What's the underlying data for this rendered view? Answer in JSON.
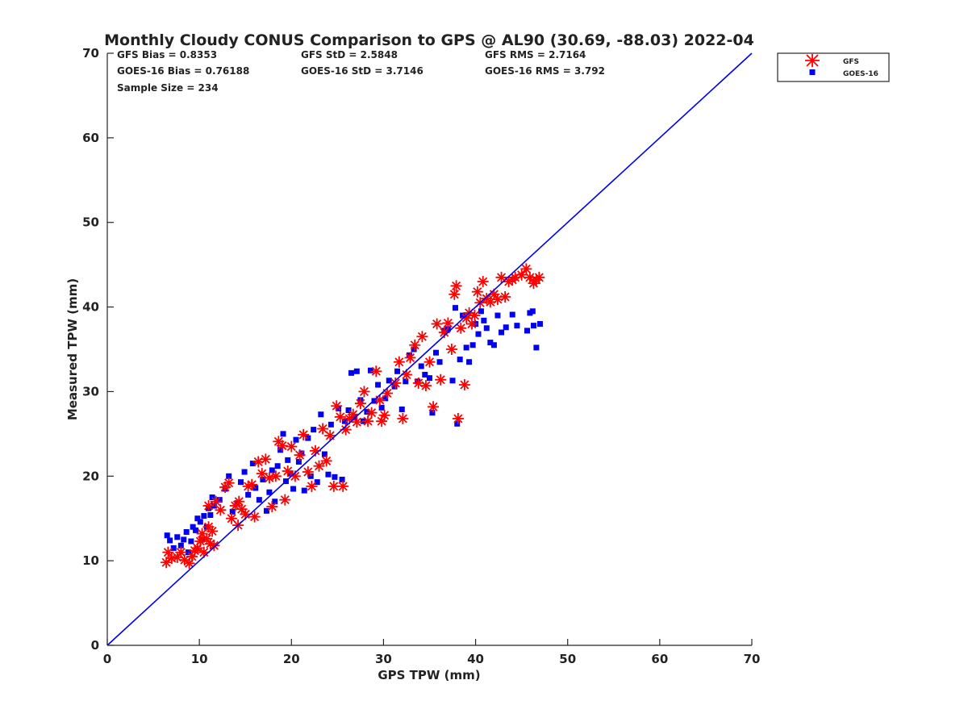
{
  "chart_data": {
    "type": "scatter",
    "title": "Monthly Cloudy CONUS Comparison to GPS @ AL90 (30.69, -88.03) 2022-04",
    "xlabel": "GPS TPW (mm)",
    "ylabel": "Measured TPW (mm)",
    "xlim": [
      0,
      70
    ],
    "ylim": [
      0,
      70
    ],
    "xticks": [
      0,
      10,
      20,
      30,
      40,
      50,
      60,
      70
    ],
    "yticks": [
      0,
      10,
      20,
      30,
      40,
      50,
      60,
      70
    ],
    "grid": false,
    "legend_position": "top-right (outside)",
    "reference_line": {
      "name": "1:1 line",
      "x": [
        0,
        70
      ],
      "y": [
        0,
        70
      ],
      "color": "#0000ee"
    },
    "stats": [
      [
        "GFS Bias = 0.8353",
        "GFS StD = 2.5848",
        "GFS RMS = 2.7164"
      ],
      [
        "GOES-16 Bias = 0.76188",
        "GOES-16 StD = 3.7146",
        "GOES-16 RMS = 3.792"
      ],
      [
        "Sample Size = 234"
      ]
    ],
    "series": [
      {
        "name": "GFS",
        "marker": "asterisk",
        "color": "#ff0000",
        "points": [
          [
            6.4,
            9.8
          ],
          [
            6.6,
            11.0
          ],
          [
            7.0,
            10.3
          ],
          [
            7.6,
            10.4
          ],
          [
            8.0,
            11.0
          ],
          [
            8.4,
            10.1
          ],
          [
            8.9,
            9.7
          ],
          [
            9.2,
            10.5
          ],
          [
            9.5,
            11.2
          ],
          [
            9.8,
            11.5
          ],
          [
            10.1,
            12.3
          ],
          [
            10.3,
            13.2
          ],
          [
            10.5,
            11.0
          ],
          [
            10.8,
            12.6
          ],
          [
            11.0,
            14.0
          ],
          [
            11.2,
            12.0
          ],
          [
            11.4,
            13.5
          ],
          [
            11.6,
            11.8
          ],
          [
            11.0,
            16.5
          ],
          [
            11.8,
            17.0
          ],
          [
            12.3,
            16.0
          ],
          [
            12.8,
            18.7
          ],
          [
            13.2,
            19.2
          ],
          [
            13.5,
            15.0
          ],
          [
            13.9,
            16.5
          ],
          [
            14.3,
            17.0
          ],
          [
            14.6,
            16.1
          ],
          [
            14.2,
            14.2
          ],
          [
            15.0,
            15.5
          ],
          [
            15.3,
            18.8
          ],
          [
            15.7,
            19.0
          ],
          [
            16.0,
            15.2
          ],
          [
            16.4,
            21.7
          ],
          [
            16.8,
            20.3
          ],
          [
            17.2,
            22.0
          ],
          [
            17.6,
            19.8
          ],
          [
            17.9,
            16.4
          ],
          [
            18.3,
            20.0
          ],
          [
            18.6,
            24.1
          ],
          [
            19.0,
            23.6
          ],
          [
            19.3,
            17.2
          ],
          [
            19.6,
            20.6
          ],
          [
            20.0,
            23.5
          ],
          [
            20.4,
            20.0
          ],
          [
            20.9,
            22.5
          ],
          [
            21.3,
            24.9
          ],
          [
            21.8,
            20.5
          ],
          [
            22.2,
            18.8
          ],
          [
            22.6,
            23.0
          ],
          [
            23.0,
            21.2
          ],
          [
            23.4,
            25.6
          ],
          [
            23.8,
            21.8
          ],
          [
            24.2,
            24.8
          ],
          [
            24.6,
            18.8
          ],
          [
            24.9,
            28.3
          ],
          [
            25.3,
            27.0
          ],
          [
            25.6,
            18.8
          ],
          [
            25.9,
            25.5
          ],
          [
            26.3,
            26.8
          ],
          [
            26.7,
            27.3
          ],
          [
            27.1,
            26.4
          ],
          [
            27.5,
            28.6
          ],
          [
            27.9,
            30.0
          ],
          [
            28.3,
            26.5
          ],
          [
            28.7,
            27.5
          ],
          [
            29.2,
            32.4
          ],
          [
            29.6,
            29.0
          ],
          [
            29.8,
            26.5
          ],
          [
            30.1,
            27.2
          ],
          [
            30.4,
            29.8
          ],
          [
            31.3,
            31.0
          ],
          [
            31.7,
            33.5
          ],
          [
            32.1,
            26.8
          ],
          [
            32.5,
            32.0
          ],
          [
            32.9,
            34.0
          ],
          [
            33.4,
            35.5
          ],
          [
            33.8,
            31.0
          ],
          [
            34.2,
            36.5
          ],
          [
            34.6,
            30.7
          ],
          [
            35.0,
            33.5
          ],
          [
            35.4,
            28.2
          ],
          [
            35.8,
            38.0
          ],
          [
            36.2,
            31.4
          ],
          [
            36.6,
            37.0
          ],
          [
            37.0,
            38.1
          ],
          [
            37.4,
            35.0
          ],
          [
            37.7,
            41.5
          ],
          [
            37.9,
            42.5
          ],
          [
            38.1,
            26.8
          ],
          [
            38.4,
            37.5
          ],
          [
            38.8,
            30.8
          ],
          [
            39.0,
            38.7
          ],
          [
            39.3,
            39.3
          ],
          [
            39.6,
            38.0
          ],
          [
            39.9,
            39.0
          ],
          [
            40.2,
            41.8
          ],
          [
            40.5,
            40.5
          ],
          [
            40.8,
            43.0
          ],
          [
            41.2,
            41.0
          ],
          [
            41.6,
            40.6
          ],
          [
            42.0,
            41.5
          ],
          [
            42.4,
            40.9
          ],
          [
            42.8,
            43.5
          ],
          [
            43.2,
            41.2
          ],
          [
            43.6,
            43.0
          ],
          [
            44.0,
            43.2
          ],
          [
            44.3,
            43.5
          ],
          [
            45.0,
            43.8
          ],
          [
            45.5,
            44.5
          ],
          [
            45.9,
            43.5
          ],
          [
            46.3,
            42.8
          ],
          [
            46.6,
            43.2
          ],
          [
            46.9,
            43.5
          ]
        ]
      },
      {
        "name": "GOES-16",
        "marker": "square",
        "color": "#0000ee",
        "points": [
          [
            6.5,
            13.0
          ],
          [
            6.8,
            12.4
          ],
          [
            7.2,
            11.5
          ],
          [
            7.6,
            12.8
          ],
          [
            8.0,
            11.8
          ],
          [
            8.3,
            12.5
          ],
          [
            8.6,
            13.4
          ],
          [
            8.8,
            11.0
          ],
          [
            9.1,
            12.3
          ],
          [
            9.3,
            14.0
          ],
          [
            9.6,
            13.6
          ],
          [
            9.8,
            15.0
          ],
          [
            10.1,
            14.6
          ],
          [
            10.3,
            12.5
          ],
          [
            10.5,
            15.3
          ],
          [
            10.8,
            14.0
          ],
          [
            11.0,
            16.2
          ],
          [
            11.2,
            15.4
          ],
          [
            11.4,
            17.5
          ],
          [
            11.6,
            16.5
          ],
          [
            12.2,
            17.2
          ],
          [
            12.8,
            18.5
          ],
          [
            13.2,
            20.0
          ],
          [
            13.6,
            15.8
          ],
          [
            14.1,
            16.8
          ],
          [
            14.5,
            19.3
          ],
          [
            14.9,
            20.5
          ],
          [
            15.3,
            17.8
          ],
          [
            15.8,
            21.5
          ],
          [
            16.1,
            18.6
          ],
          [
            16.5,
            17.2
          ],
          [
            16.9,
            19.6
          ],
          [
            17.3,
            15.9
          ],
          [
            17.6,
            18.1
          ],
          [
            17.9,
            20.7
          ],
          [
            18.2,
            17.0
          ],
          [
            18.5,
            21.2
          ],
          [
            18.8,
            23.1
          ],
          [
            19.1,
            25.0
          ],
          [
            19.4,
            19.4
          ],
          [
            19.6,
            21.9
          ],
          [
            19.9,
            20.3
          ],
          [
            20.2,
            18.5
          ],
          [
            20.5,
            24.3
          ],
          [
            20.8,
            21.7
          ],
          [
            21.1,
            22.7
          ],
          [
            21.4,
            18.3
          ],
          [
            21.8,
            24.5
          ],
          [
            22.1,
            20.0
          ],
          [
            22.4,
            25.5
          ],
          [
            22.8,
            19.3
          ],
          [
            23.2,
            27.3
          ],
          [
            23.6,
            22.6
          ],
          [
            24.0,
            20.2
          ],
          [
            24.3,
            26.1
          ],
          [
            24.7,
            19.9
          ],
          [
            25.1,
            28.0
          ],
          [
            25.5,
            19.6
          ],
          [
            25.8,
            26.5
          ],
          [
            26.2,
            27.8
          ],
          [
            26.5,
            32.2
          ],
          [
            26.8,
            26.9
          ],
          [
            27.1,
            32.4
          ],
          [
            27.5,
            29.0
          ],
          [
            27.8,
            26.5
          ],
          [
            28.2,
            27.6
          ],
          [
            28.6,
            32.5
          ],
          [
            29.0,
            28.9
          ],
          [
            29.4,
            30.8
          ],
          [
            29.8,
            28.1
          ],
          [
            30.2,
            29.2
          ],
          [
            30.6,
            31.3
          ],
          [
            31.2,
            30.6
          ],
          [
            31.5,
            32.4
          ],
          [
            32.0,
            27.9
          ],
          [
            32.4,
            31.2
          ],
          [
            32.8,
            34.3
          ],
          [
            33.3,
            35.0
          ],
          [
            33.7,
            31.2
          ],
          [
            34.1,
            33.0
          ],
          [
            34.5,
            32.0
          ],
          [
            35.0,
            31.6
          ],
          [
            35.3,
            27.5
          ],
          [
            35.7,
            34.6
          ],
          [
            36.1,
            33.5
          ],
          [
            36.6,
            37.2
          ],
          [
            37.0,
            37.4
          ],
          [
            37.5,
            31.3
          ],
          [
            37.8,
            39.9
          ],
          [
            38.0,
            26.2
          ],
          [
            38.3,
            33.8
          ],
          [
            38.6,
            39.0
          ],
          [
            39.0,
            35.2
          ],
          [
            39.3,
            33.5
          ],
          [
            39.7,
            35.5
          ],
          [
            40.0,
            38.0
          ],
          [
            40.3,
            36.8
          ],
          [
            40.6,
            39.5
          ],
          [
            40.9,
            38.4
          ],
          [
            41.2,
            37.5
          ],
          [
            41.6,
            35.8
          ],
          [
            42.0,
            35.5
          ],
          [
            42.4,
            39.0
          ],
          [
            42.8,
            37.0
          ],
          [
            43.3,
            37.6
          ],
          [
            44.0,
            39.1
          ],
          [
            44.5,
            37.8
          ],
          [
            45.6,
            37.2
          ],
          [
            45.9,
            39.3
          ],
          [
            46.2,
            39.5
          ],
          [
            46.3,
            37.8
          ],
          [
            46.6,
            35.2
          ],
          [
            47.0,
            38.0
          ]
        ]
      }
    ]
  }
}
